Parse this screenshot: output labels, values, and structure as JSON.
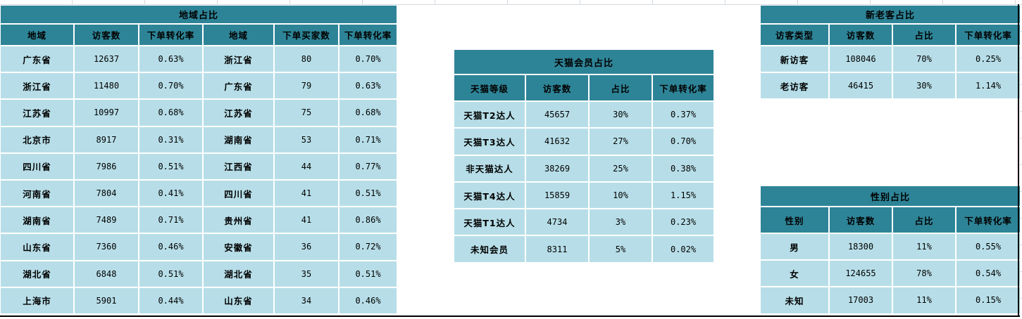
{
  "colors": {
    "header_bg": "#2E8497",
    "cell_bg": "#B7DEE8",
    "text": "#000000",
    "gridline": "#D3D9E0",
    "frame_border": "#000000"
  },
  "tables": {
    "region": {
      "title": "地域占比",
      "headers": [
        "地域",
        "访客数",
        "下单转化率",
        "地域",
        "下单买家数",
        "下单转化率"
      ],
      "rows": [
        [
          "广东省",
          "12637",
          "0.63%",
          "浙江省",
          "80",
          "0.70%"
        ],
        [
          "浙江省",
          "11480",
          "0.70%",
          "广东省",
          "79",
          "0.63%"
        ],
        [
          "江苏省",
          "10997",
          "0.68%",
          "江苏省",
          "75",
          "0.68%"
        ],
        [
          "北京市",
          "8917",
          "0.31%",
          "湖南省",
          "53",
          "0.71%"
        ],
        [
          "四川省",
          "7986",
          "0.51%",
          "江西省",
          "44",
          "0.77%"
        ],
        [
          "河南省",
          "7804",
          "0.41%",
          "四川省",
          "41",
          "0.51%"
        ],
        [
          "湖南省",
          "7489",
          "0.71%",
          "贵州省",
          "41",
          "0.86%"
        ],
        [
          "山东省",
          "7360",
          "0.46%",
          "安徽省",
          "36",
          "0.72%"
        ],
        [
          "湖北省",
          "6848",
          "0.51%",
          "湖北省",
          "35",
          "0.51%"
        ],
        [
          "上海市",
          "5901",
          "0.44%",
          "山东省",
          "34",
          "0.46%"
        ]
      ]
    },
    "tmall": {
      "title": "天猫会员占比",
      "headers": [
        "天猫等级",
        "访客数",
        "占比",
        "下单转化率"
      ],
      "rows": [
        [
          "天猫T2达人",
          "45657",
          "30%",
          "0.37%"
        ],
        [
          "天猫T3达人",
          "41632",
          "27%",
          "0.70%"
        ],
        [
          "非天猫达人",
          "38269",
          "25%",
          "0.38%"
        ],
        [
          "天猫T4达人",
          "15859",
          "10%",
          "1.15%"
        ],
        [
          "天猫T1达人",
          "4734",
          "3%",
          "0.23%"
        ],
        [
          "未知会员",
          "8311",
          "5%",
          "0.02%"
        ]
      ]
    },
    "visitor_type": {
      "title": "新老客占比",
      "headers": [
        "访客类型",
        "访客数",
        "占比",
        "下单转化率"
      ],
      "rows": [
        [
          "新访客",
          "108046",
          "70%",
          "0.25%"
        ],
        [
          "老访客",
          "46415",
          "30%",
          "1.14%"
        ]
      ]
    },
    "gender": {
      "title": "性别占比",
      "headers": [
        "性别",
        "访客数",
        "占比",
        "下单转化率"
      ],
      "rows": [
        [
          "男",
          "18300",
          "11%",
          "0.55%"
        ],
        [
          "女",
          "124655",
          "78%",
          "0.54%"
        ],
        [
          "未知",
          "17003",
          "11%",
          "0.15%"
        ]
      ]
    }
  }
}
